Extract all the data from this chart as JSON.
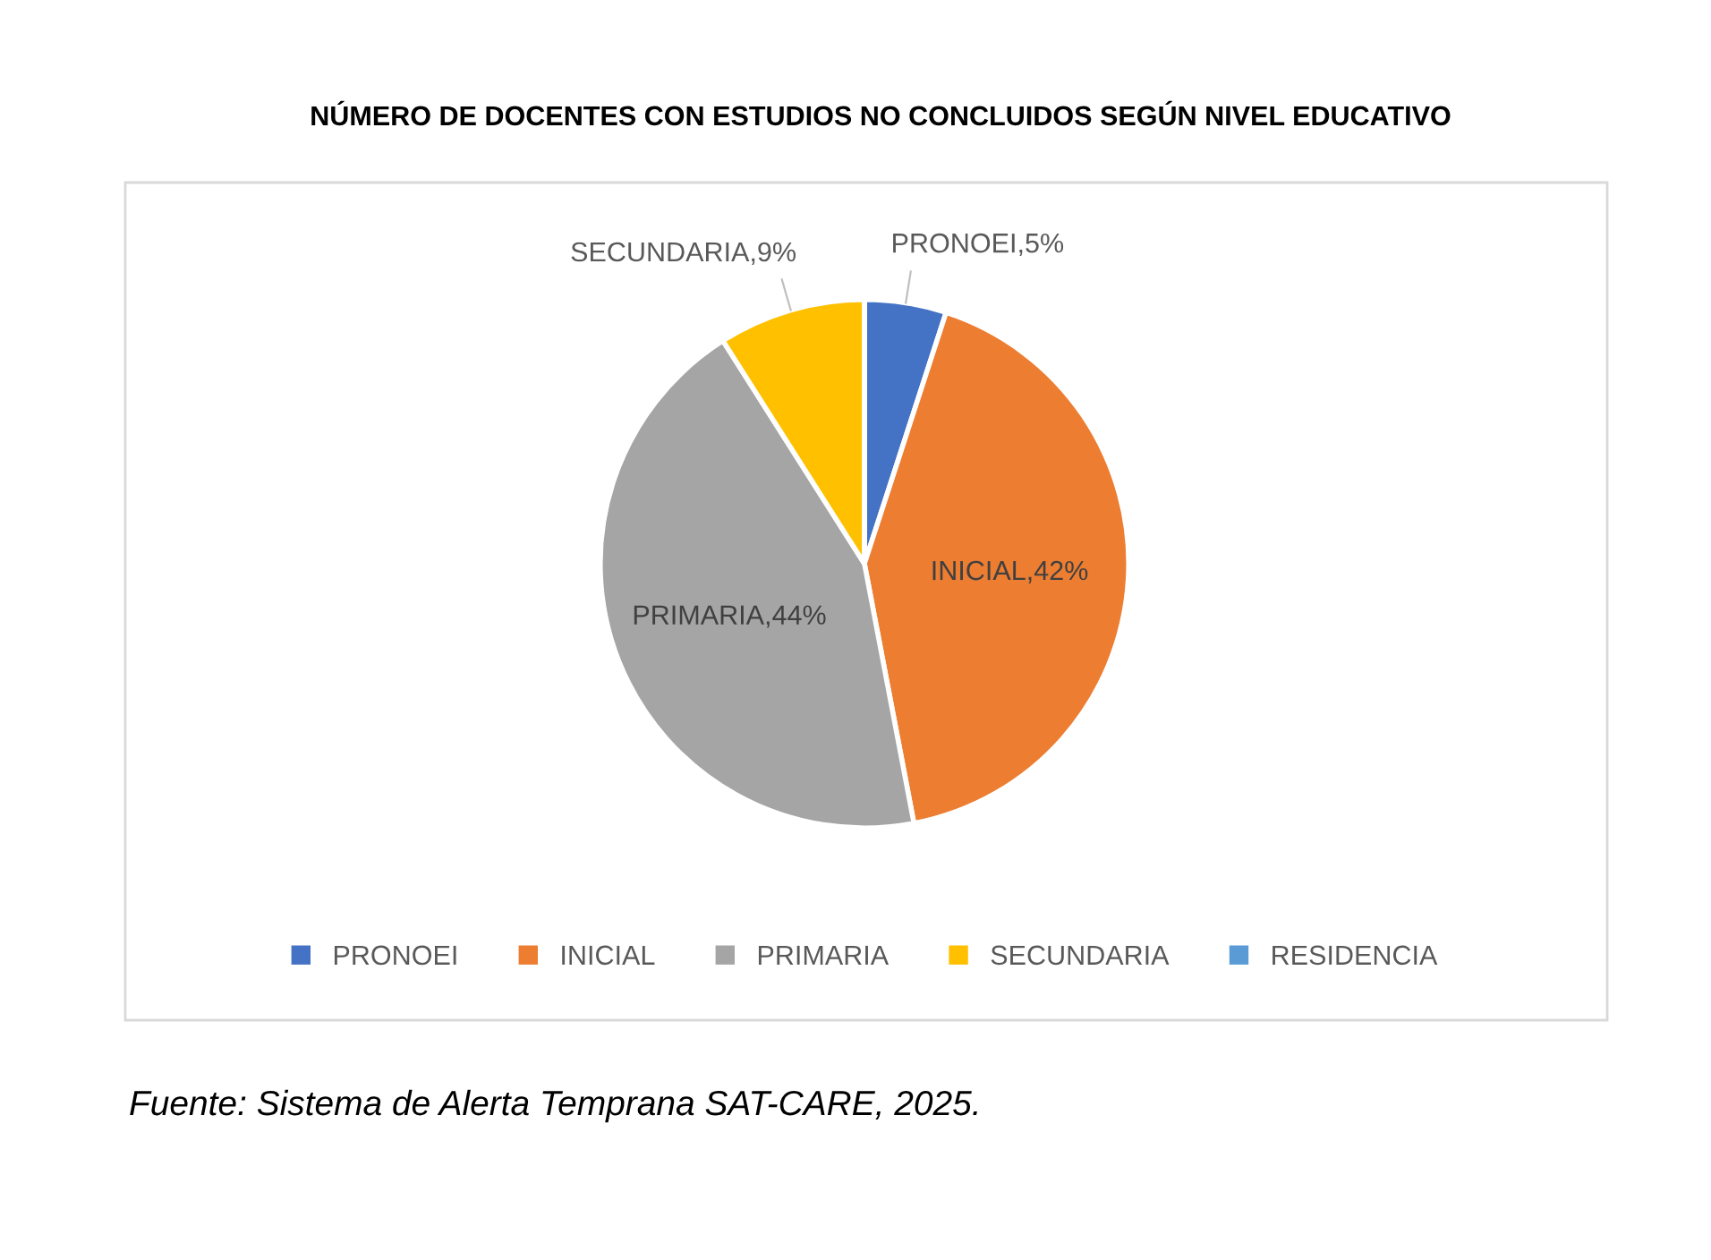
{
  "chart_data": {
    "type": "pie",
    "title": "NÚMERO DE DOCENTES CON ESTUDIOS NO CONCLUIDOS SEGÚN NIVEL EDUCATIVO",
    "categories": [
      "PRONOEI",
      "INICIAL",
      "PRIMARIA",
      "SECUNDARIA",
      "RESIDENCIA"
    ],
    "values": [
      5,
      42,
      44,
      9,
      0
    ],
    "colors": [
      "#4472c4",
      "#ed7d31",
      "#a5a5a5",
      "#ffc000",
      "#5b9bd5"
    ],
    "value_labels": [
      "PRONOEI,5%",
      "INICIAL,42%",
      "PRIMARIA,44%",
      "SECUNDARIA,9%",
      null
    ],
    "legend": "bottom",
    "annotations": [
      "Fuente: Sistema de Alerta Temprana SAT-CARE, 2025."
    ]
  }
}
